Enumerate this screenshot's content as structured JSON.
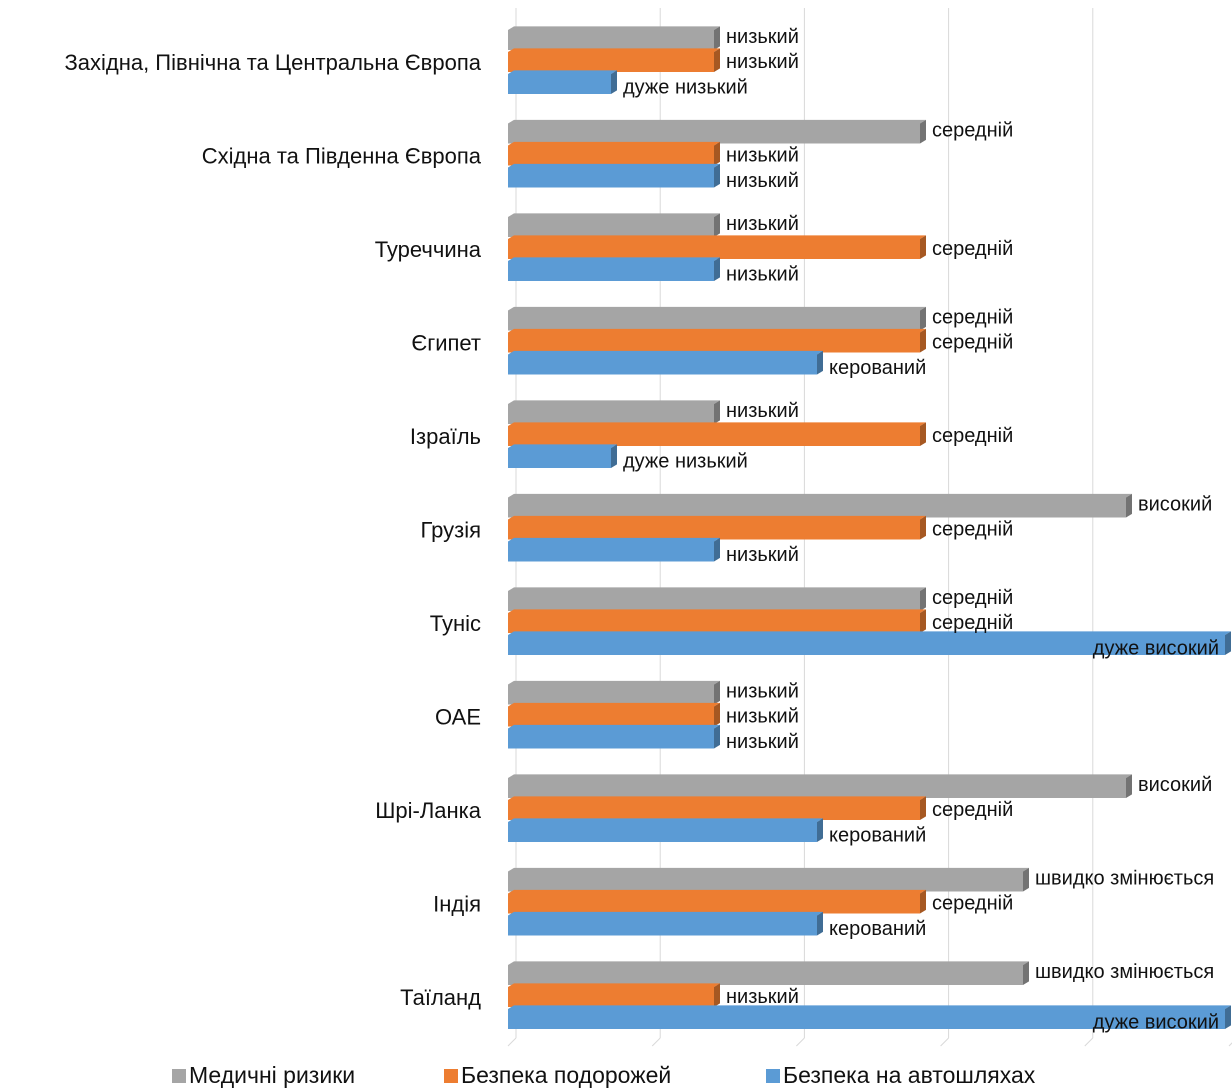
{
  "chart_data": {
    "type": "bar",
    "orientation": "horizontal",
    "title": "",
    "xlabel": "",
    "ylabel": "",
    "scale_levels": [
      "дуже низький",
      "низький",
      "керований",
      "середній",
      "швидко змінюється",
      "високий",
      "дуже високий"
    ],
    "xlim": [
      0,
      7
    ],
    "grid": true,
    "legend_position": "bottom",
    "categories": [
      "Західна, Північна та Центральна Європа",
      "Східна та Південна Європа",
      "Туреччина",
      "Єгипет",
      "Ізраїль",
      "Грузія",
      "Туніс",
      "ОАЕ",
      "Шрі-Ланка",
      "Індія",
      "Таїланд"
    ],
    "series": [
      {
        "name": "Медичні ризики",
        "color": "#a5a5a5",
        "values": [
          2,
          4,
          2,
          4,
          2,
          6,
          4,
          2,
          6,
          5,
          5
        ],
        "labels": [
          "низький",
          "середній",
          "низький",
          "середній",
          "низький",
          "високий",
          "середній",
          "низький",
          "високий",
          "швидко змінюється",
          "швидко змінюється"
        ]
      },
      {
        "name": "Безпека подорожей",
        "color": "#ed7d31",
        "values": [
          2,
          2,
          4,
          4,
          4,
          4,
          4,
          2,
          4,
          4,
          2
        ],
        "labels": [
          "низький",
          "низький",
          "середній",
          "середній",
          "середній",
          "середній",
          "середній",
          "низький",
          "середній",
          "середній",
          "низький"
        ]
      },
      {
        "name": "Безпека на автошляхах",
        "color": "#5b9bd5",
        "values": [
          1,
          2,
          2,
          3,
          1,
          2,
          7,
          2,
          3,
          3,
          7
        ],
        "labels": [
          "дуже низький",
          "низький",
          "низький",
          "керований",
          "дуже низький",
          "низький",
          "дуже високий",
          "низький",
          "керований",
          "керований",
          "дуже високий"
        ]
      }
    ]
  }
}
